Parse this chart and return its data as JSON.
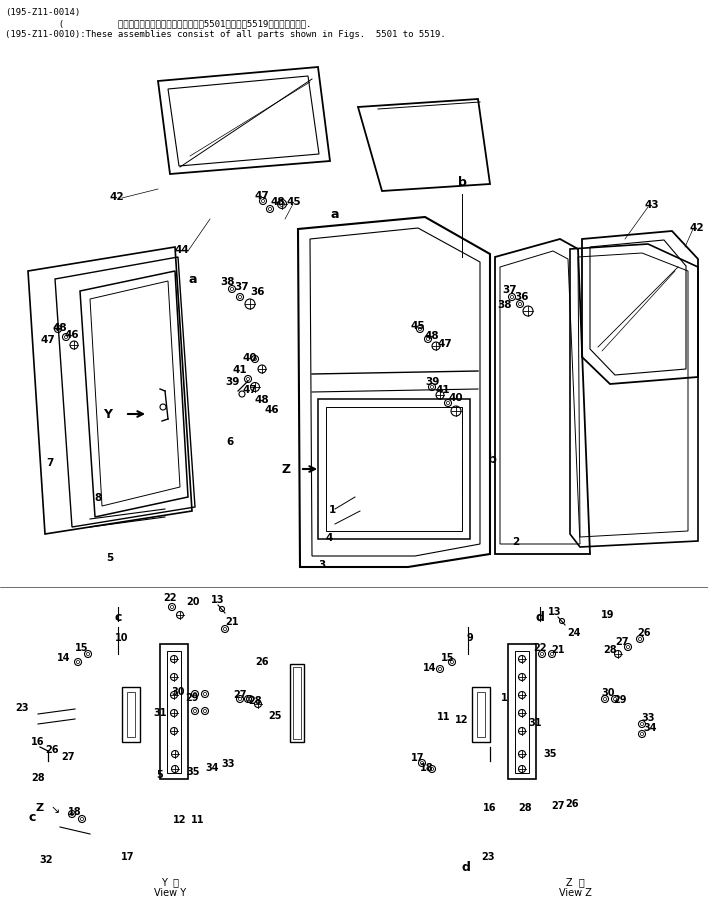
{
  "bg": "#ffffff",
  "lc": "#000000",
  "header": [
    "(195-Z11-0014)",
    "          (          これらのアセンブリの構成部品は第5501図から第5519図まで含みます.",
    "(195-Z11-0010):These assemblies consist of all parts shown in Figs.  5501 to 5519."
  ]
}
